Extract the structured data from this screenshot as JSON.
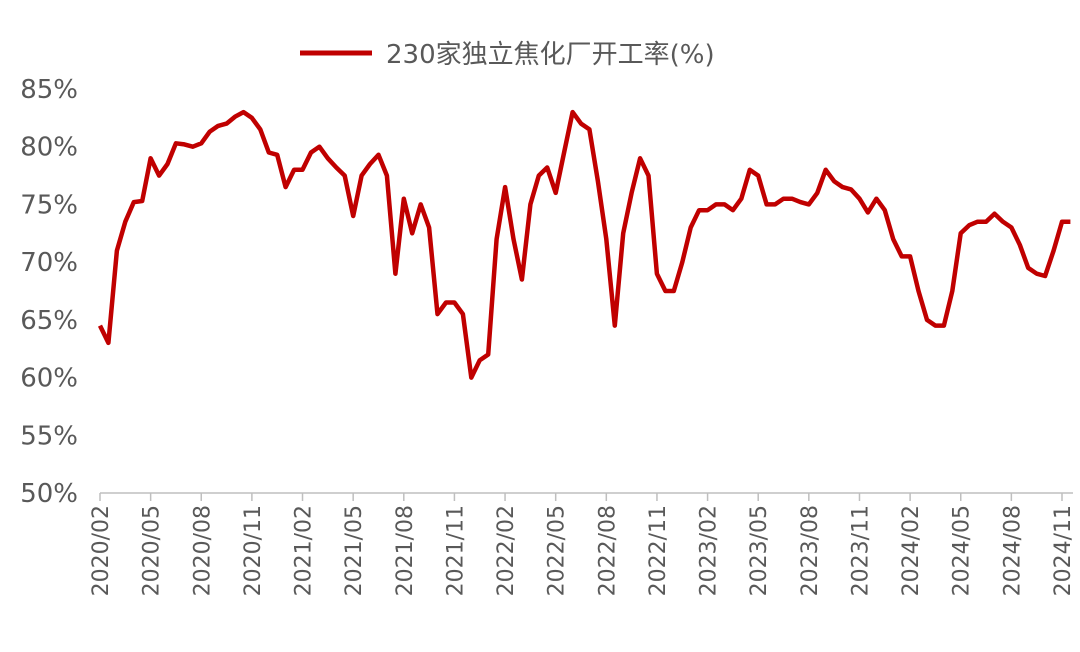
{
  "chart_data": {
    "type": "line",
    "categories": [
      "2020/02",
      null,
      null,
      null,
      null,
      null,
      "2020/05",
      null,
      null,
      null,
      null,
      null,
      "2020/08",
      null,
      null,
      null,
      null,
      null,
      "2020/11",
      null,
      null,
      null,
      null,
      null,
      "2021/02",
      null,
      null,
      null,
      null,
      null,
      "2021/05",
      null,
      null,
      null,
      null,
      null,
      "2021/08",
      null,
      null,
      null,
      null,
      null,
      "2021/11",
      null,
      null,
      null,
      null,
      null,
      "2022/02",
      null,
      null,
      null,
      null,
      null,
      "2022/05",
      null,
      null,
      null,
      null,
      null,
      "2022/08",
      null,
      null,
      null,
      null,
      null,
      "2022/11",
      null,
      null,
      null,
      null,
      null,
      "2023/02",
      null,
      null,
      null,
      null,
      null,
      "2023/05",
      null,
      null,
      null,
      null,
      null,
      "2023/08",
      null,
      null,
      null,
      null,
      null,
      "2023/11",
      null,
      null,
      null,
      null,
      null,
      "2024/02",
      null,
      null,
      null,
      null,
      null,
      "2024/05",
      null,
      null,
      null,
      null,
      null,
      "2024/08",
      null,
      null,
      null,
      null,
      null,
      "2024/11",
      null
    ],
    "series": [
      {
        "name": "230家独立焦化厂开工率(%)",
        "color": "#c00000",
        "values": [
          64.5,
          63,
          71,
          73.5,
          75.2,
          75.3,
          79,
          77.5,
          78.5,
          80.3,
          80.2,
          80,
          80.3,
          81.3,
          81.8,
          82,
          82.6,
          83,
          82.5,
          81.5,
          79.5,
          79.3,
          76.5,
          78,
          78,
          79.5,
          80,
          79,
          78.2,
          77.5,
          74,
          77.5,
          78.5,
          79.3,
          77.5,
          69,
          75.5,
          72.5,
          75,
          73,
          65.5,
          66.5,
          66.5,
          65.5,
          60,
          61.5,
          62,
          72,
          76.5,
          72,
          68.5,
          75,
          77.5,
          78.2,
          76,
          79.5,
          83,
          82,
          81.5,
          77,
          72,
          64.5,
          72.5,
          76,
          79,
          77.5,
          69,
          67.5,
          67.5,
          70,
          73,
          74.5,
          74.5,
          75,
          75,
          74.5,
          75.5,
          78,
          77.5,
          75,
          75,
          75.5,
          75.5,
          75.2,
          75,
          76,
          78,
          77,
          76.5,
          76.3,
          75.5,
          74.3,
          75.5,
          74.5,
          72,
          70.5,
          70.5,
          67.5,
          65,
          64.5,
          64.5,
          67.5,
          72.5,
          73.2,
          73.5,
          73.5,
          74.2,
          73.5,
          73,
          71.5,
          69.5,
          69,
          68.8,
          71,
          73.5,
          73.5
        ]
      }
    ],
    "ylim": [
      50,
      85
    ],
    "yticks": [
      {
        "value": 50,
        "label": "50%"
      },
      {
        "value": 55,
        "label": "55%"
      },
      {
        "value": 60,
        "label": "60%"
      },
      {
        "value": 65,
        "label": "65%"
      },
      {
        "value": 70,
        "label": "70%"
      },
      {
        "value": 75,
        "label": "75%"
      },
      {
        "value": 80,
        "label": "80%"
      },
      {
        "value": 85,
        "label": "85%"
      }
    ],
    "grid": false,
    "legend": "top"
  }
}
